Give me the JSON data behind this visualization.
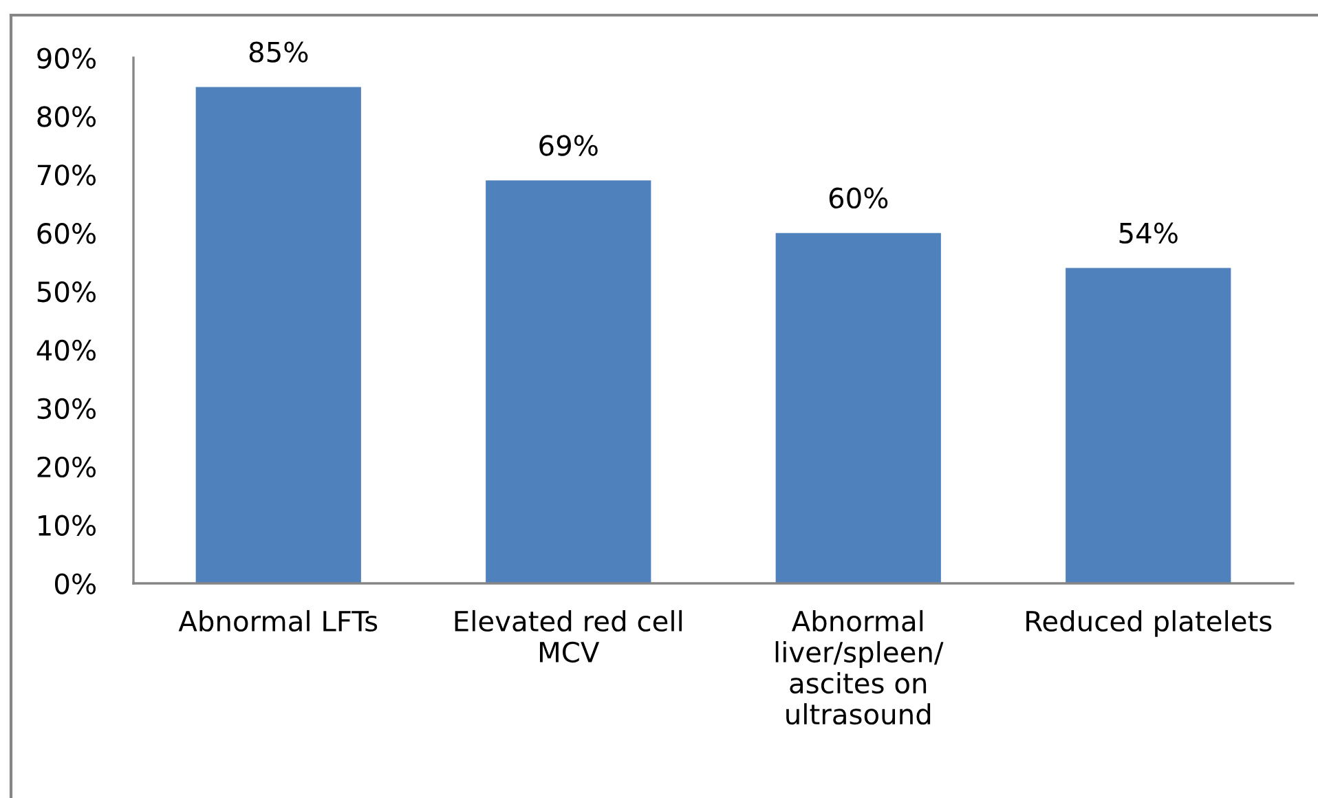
{
  "chart_data": {
    "type": "bar",
    "categories": [
      "Abnormal LFTs",
      "Elevated red cell\nMCV",
      "Abnormal\nliver/spleen/\nascites on\nultrasound",
      "Reduced platelets"
    ],
    "values": [
      85,
      69,
      60,
      54
    ],
    "color": "#4f81bd",
    "value_labels": [
      "85%",
      "69%",
      "60%",
      "54%"
    ],
    "ylim": [
      0,
      90
    ],
    "yticks": [
      {
        "value": 0,
        "label": "0%"
      },
      {
        "value": 10,
        "label": "10%"
      },
      {
        "value": 20,
        "label": "20%"
      },
      {
        "value": 30,
        "label": "30%"
      },
      {
        "value": 40,
        "label": "40%"
      },
      {
        "value": 50,
        "label": "50%"
      },
      {
        "value": 60,
        "label": "60%"
      },
      {
        "value": 70,
        "label": "70%"
      },
      {
        "value": 80,
        "label": "80%"
      },
      {
        "value": 90,
        "label": "90%"
      }
    ],
    "grid": false,
    "legend": false
  }
}
